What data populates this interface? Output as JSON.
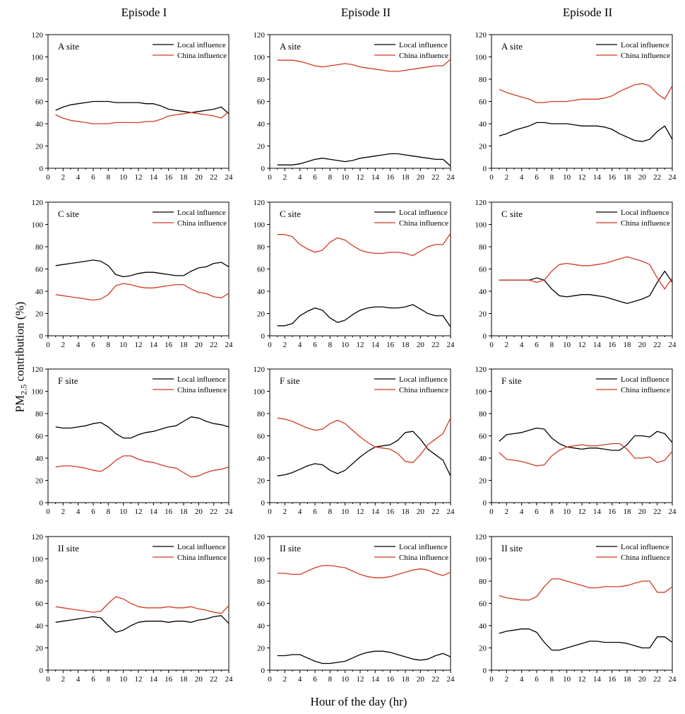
{
  "figure": {
    "column_titles": [
      "Episode I",
      "Episode II",
      "Episode II"
    ],
    "ylabel_main": "PM",
    "ylabel_sub": "2.5",
    "ylabel_rest": " contribution (%)",
    "xlabel": "Hour of the day (hr)"
  },
  "colors": {
    "local": "#000000",
    "china": "#d23b22"
  },
  "chart_data": [
    {
      "type": "line",
      "episode": "Episode I",
      "site": "A site",
      "x": [
        1,
        2,
        3,
        4,
        5,
        6,
        7,
        8,
        9,
        10,
        11,
        12,
        13,
        14,
        15,
        16,
        17,
        18,
        19,
        20,
        21,
        22,
        23,
        24
      ],
      "ylim": [
        0,
        120
      ],
      "xlim": [
        0,
        24
      ],
      "series": [
        {
          "name": "Local influence",
          "values": [
            52,
            55,
            57,
            58,
            59,
            60,
            60,
            60,
            59,
            59,
            59,
            59,
            58,
            58,
            56,
            53,
            52,
            51,
            50,
            51,
            52,
            53,
            55,
            49
          ]
        },
        {
          "name": "China influence",
          "values": [
            48,
            45,
            43,
            42,
            41,
            40,
            40,
            40,
            41,
            41,
            41,
            41,
            42,
            42,
            44,
            47,
            48,
            49,
            50,
            49,
            48,
            47,
            45,
            51
          ]
        }
      ]
    },
    {
      "type": "line",
      "episode": "Episode II",
      "site": "A site",
      "x": [
        1,
        2,
        3,
        4,
        5,
        6,
        7,
        8,
        9,
        10,
        11,
        12,
        13,
        14,
        15,
        16,
        17,
        18,
        19,
        20,
        21,
        22,
        23,
        24
      ],
      "ylim": [
        0,
        120
      ],
      "xlim": [
        0,
        24
      ],
      "series": [
        {
          "name": "Local influence",
          "values": [
            3,
            3,
            3,
            4,
            6,
            8,
            9,
            8,
            7,
            6,
            7,
            9,
            10,
            11,
            12,
            13,
            13,
            12,
            11,
            10,
            9,
            8,
            8,
            2
          ]
        },
        {
          "name": "China influence",
          "values": [
            97,
            97,
            97,
            96,
            94,
            92,
            91,
            92,
            93,
            94,
            93,
            91,
            90,
            89,
            88,
            87,
            87,
            88,
            89,
            90,
            91,
            92,
            92,
            98
          ]
        }
      ]
    },
    {
      "type": "line",
      "episode": "Episode II",
      "site": "A site",
      "x": [
        1,
        2,
        3,
        4,
        5,
        6,
        7,
        8,
        9,
        10,
        11,
        12,
        13,
        14,
        15,
        16,
        17,
        18,
        19,
        20,
        21,
        22,
        23,
        24
      ],
      "ylim": [
        0,
        120
      ],
      "xlim": [
        0,
        24
      ],
      "series": [
        {
          "name": "Local influence",
          "values": [
            29,
            31,
            34,
            36,
            38,
            41,
            41,
            40,
            40,
            40,
            39,
            38,
            38,
            38,
            37,
            35,
            31,
            28,
            25,
            24,
            26,
            33,
            38,
            26
          ]
        },
        {
          "name": "China influence",
          "values": [
            71,
            68,
            66,
            64,
            62,
            59,
            59,
            60,
            60,
            60,
            61,
            62,
            62,
            62,
            63,
            65,
            69,
            72,
            75,
            76,
            74,
            67,
            62,
            74
          ]
        }
      ]
    },
    {
      "type": "line",
      "episode": "Episode I",
      "site": "C site",
      "x": [
        1,
        2,
        3,
        4,
        5,
        6,
        7,
        8,
        9,
        10,
        11,
        12,
        13,
        14,
        15,
        16,
        17,
        18,
        19,
        20,
        21,
        22,
        23,
        24
      ],
      "ylim": [
        0,
        120
      ],
      "xlim": [
        0,
        24
      ],
      "series": [
        {
          "name": "Local influence",
          "values": [
            63,
            64,
            65,
            66,
            67,
            68,
            67,
            63,
            55,
            53,
            54,
            56,
            57,
            57,
            56,
            55,
            54,
            54,
            58,
            61,
            62,
            65,
            66,
            62
          ]
        },
        {
          "name": "China influence",
          "values": [
            37,
            36,
            35,
            34,
            33,
            32,
            33,
            37,
            45,
            47,
            46,
            44,
            43,
            43,
            44,
            45,
            46,
            46,
            42,
            39,
            38,
            35,
            34,
            38
          ]
        }
      ]
    },
    {
      "type": "line",
      "episode": "Episode II",
      "site": "C site",
      "x": [
        1,
        2,
        3,
        4,
        5,
        6,
        7,
        8,
        9,
        10,
        11,
        12,
        13,
        14,
        15,
        16,
        17,
        18,
        19,
        20,
        21,
        22,
        23,
        24
      ],
      "ylim": [
        0,
        120
      ],
      "xlim": [
        0,
        24
      ],
      "series": [
        {
          "name": "Local influence",
          "values": [
            9,
            9,
            11,
            18,
            22,
            25,
            23,
            16,
            12,
            14,
            19,
            23,
            25,
            26,
            26,
            25,
            25,
            26,
            28,
            24,
            20,
            18,
            18,
            8
          ]
        },
        {
          "name": "China influence",
          "values": [
            91,
            91,
            89,
            82,
            78,
            75,
            77,
            84,
            88,
            86,
            81,
            77,
            75,
            74,
            74,
            75,
            75,
            74,
            72,
            76,
            80,
            82,
            82,
            92
          ]
        }
      ]
    },
    {
      "type": "line",
      "episode": "Episode II",
      "site": "C site",
      "x": [
        1,
        2,
        3,
        4,
        5,
        6,
        7,
        8,
        9,
        10,
        11,
        12,
        13,
        14,
        15,
        16,
        17,
        18,
        19,
        20,
        21,
        22,
        23,
        24
      ],
      "ylim": [
        0,
        120
      ],
      "xlim": [
        0,
        24
      ],
      "series": [
        {
          "name": "Local influence",
          "values": [
            50,
            50,
            50,
            50,
            50,
            52,
            50,
            42,
            36,
            35,
            36,
            37,
            37,
            36,
            35,
            33,
            31,
            29,
            31,
            33,
            36,
            48,
            58,
            48
          ]
        },
        {
          "name": "China influence",
          "values": [
            50,
            50,
            50,
            50,
            50,
            48,
            50,
            58,
            64,
            65,
            64,
            63,
            63,
            64,
            65,
            67,
            69,
            71,
            69,
            67,
            64,
            52,
            42,
            52
          ]
        }
      ]
    },
    {
      "type": "line",
      "episode": "Episode I",
      "site": "F site",
      "x": [
        1,
        2,
        3,
        4,
        5,
        6,
        7,
        8,
        9,
        10,
        11,
        12,
        13,
        14,
        15,
        16,
        17,
        18,
        19,
        20,
        21,
        22,
        23,
        24
      ],
      "ylim": [
        0,
        120
      ],
      "xlim": [
        0,
        24
      ],
      "series": [
        {
          "name": "Local influence",
          "values": [
            68,
            67,
            67,
            68,
            69,
            71,
            72,
            68,
            62,
            58,
            58,
            61,
            63,
            64,
            66,
            68,
            69,
            73,
            77,
            76,
            73,
            71,
            70,
            68
          ]
        },
        {
          "name": "China influence",
          "values": [
            32,
            33,
            33,
            32,
            31,
            29,
            28,
            32,
            38,
            42,
            42,
            39,
            37,
            36,
            34,
            32,
            31,
            27,
            23,
            24,
            27,
            29,
            30,
            32
          ]
        }
      ]
    },
    {
      "type": "line",
      "episode": "Episode II",
      "site": "F site",
      "x": [
        1,
        2,
        3,
        4,
        5,
        6,
        7,
        8,
        9,
        10,
        11,
        12,
        13,
        14,
        15,
        16,
        17,
        18,
        19,
        20,
        21,
        22,
        23,
        24
      ],
      "ylim": [
        0,
        120
      ],
      "xlim": [
        0,
        24
      ],
      "series": [
        {
          "name": "Local influence",
          "values": [
            24,
            25,
            27,
            30,
            33,
            35,
            34,
            29,
            26,
            29,
            35,
            41,
            46,
            50,
            51,
            52,
            56,
            63,
            64,
            57,
            48,
            43,
            38,
            24
          ]
        },
        {
          "name": "China influence",
          "values": [
            76,
            75,
            73,
            70,
            67,
            65,
            66,
            71,
            74,
            71,
            65,
            59,
            54,
            50,
            49,
            48,
            44,
            37,
            36,
            43,
            52,
            57,
            62,
            76
          ]
        }
      ]
    },
    {
      "type": "line",
      "episode": "Episode II",
      "site": "F site",
      "x": [
        1,
        2,
        3,
        4,
        5,
        6,
        7,
        8,
        9,
        10,
        11,
        12,
        13,
        14,
        15,
        16,
        17,
        18,
        19,
        20,
        21,
        22,
        23,
        24
      ],
      "ylim": [
        0,
        120
      ],
      "xlim": [
        0,
        24
      ],
      "series": [
        {
          "name": "Local influence",
          "values": [
            55,
            61,
            62,
            63,
            65,
            67,
            66,
            58,
            53,
            50,
            49,
            48,
            49,
            49,
            48,
            47,
            47,
            52,
            60,
            60,
            59,
            64,
            62,
            54
          ]
        },
        {
          "name": "China influence",
          "values": [
            45,
            39,
            38,
            37,
            35,
            33,
            34,
            42,
            47,
            50,
            51,
            52,
            51,
            51,
            52,
            53,
            53,
            48,
            40,
            40,
            41,
            36,
            38,
            46
          ]
        }
      ]
    },
    {
      "type": "line",
      "episode": "Episode I",
      "site": "II site",
      "x": [
        1,
        2,
        3,
        4,
        5,
        6,
        7,
        8,
        9,
        10,
        11,
        12,
        13,
        14,
        15,
        16,
        17,
        18,
        19,
        20,
        21,
        22,
        23,
        24
      ],
      "ylim": [
        0,
        120
      ],
      "xlim": [
        0,
        24
      ],
      "series": [
        {
          "name": "Local influence",
          "values": [
            43,
            44,
            45,
            46,
            47,
            48,
            47,
            40,
            34,
            36,
            40,
            43,
            44,
            44,
            44,
            43,
            44,
            44,
            43,
            45,
            46,
            48,
            49,
            42
          ]
        },
        {
          "name": "China influence",
          "values": [
            57,
            56,
            55,
            54,
            53,
            52,
            53,
            60,
            66,
            64,
            60,
            57,
            56,
            56,
            56,
            57,
            56,
            56,
            57,
            55,
            54,
            52,
            51,
            58
          ]
        }
      ]
    },
    {
      "type": "line",
      "episode": "Episode II",
      "site": "II site",
      "x": [
        1,
        2,
        3,
        4,
        5,
        6,
        7,
        8,
        9,
        10,
        11,
        12,
        13,
        14,
        15,
        16,
        17,
        18,
        19,
        20,
        21,
        22,
        23,
        24
      ],
      "ylim": [
        0,
        120
      ],
      "xlim": [
        0,
        24
      ],
      "series": [
        {
          "name": "Local influence",
          "values": [
            13,
            13,
            14,
            14,
            11,
            8,
            6,
            6,
            7,
            8,
            11,
            14,
            16,
            17,
            17,
            16,
            14,
            12,
            10,
            9,
            10,
            13,
            15,
            12
          ]
        },
        {
          "name": "China influence",
          "values": [
            87,
            87,
            86,
            86,
            89,
            92,
            94,
            94,
            93,
            92,
            89,
            86,
            84,
            83,
            83,
            84,
            86,
            88,
            90,
            91,
            90,
            87,
            85,
            88
          ]
        }
      ]
    },
    {
      "type": "line",
      "episode": "Episode II",
      "site": "II site",
      "x": [
        1,
        2,
        3,
        4,
        5,
        6,
        7,
        8,
        9,
        10,
        11,
        12,
        13,
        14,
        15,
        16,
        17,
        18,
        19,
        20,
        21,
        22,
        23,
        24
      ],
      "ylim": [
        0,
        120
      ],
      "xlim": [
        0,
        24
      ],
      "series": [
        {
          "name": "Local influence",
          "values": [
            33,
            35,
            36,
            37,
            37,
            34,
            25,
            18,
            18,
            20,
            22,
            24,
            26,
            26,
            25,
            25,
            25,
            24,
            22,
            20,
            20,
            30,
            30,
            25
          ]
        },
        {
          "name": "China influence",
          "values": [
            67,
            65,
            64,
            63,
            63,
            66,
            75,
            82,
            82,
            80,
            78,
            76,
            74,
            74,
            75,
            75,
            75,
            76,
            78,
            80,
            80,
            70,
            70,
            75
          ]
        }
      ]
    }
  ]
}
